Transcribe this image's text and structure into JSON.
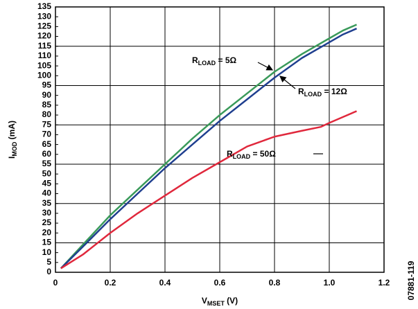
{
  "chart_data": {
    "type": "line",
    "xlabel": [
      "V",
      "MSET",
      " (V)"
    ],
    "ylabel": [
      "I",
      "MOD",
      " (mA)"
    ],
    "side_note": "07881-119",
    "xlim": [
      0,
      1.2
    ],
    "xticks": [
      0,
      0.2,
      0.4,
      0.6,
      0.8,
      {
        "value": 1,
        "label": "1.0"
      },
      1.2
    ],
    "ylim": [
      0,
      135
    ],
    "yticks": [
      0,
      5,
      10,
      15,
      20,
      25,
      30,
      35,
      40,
      45,
      50,
      55,
      60,
      65,
      70,
      75,
      80,
      85,
      90,
      95,
      100,
      105,
      110,
      115,
      120,
      125,
      130,
      135
    ],
    "ygrid": [
      15,
      35,
      55,
      75,
      95,
      115
    ],
    "grid": true,
    "series": [
      {
        "color": "#3a9a5a",
        "x": [
          0.02,
          0.1,
          0.2,
          0.3,
          0.4,
          0.5,
          0.6,
          0.7,
          0.8,
          0.9,
          1.0,
          1.05,
          1.1
        ],
        "values": [
          2,
          14,
          29,
          42,
          55,
          68,
          80,
          91,
          102,
          111,
          119,
          123,
          126
        ]
      },
      {
        "color": "#1f3f8f",
        "x": [
          0.02,
          0.1,
          0.2,
          0.3,
          0.4,
          0.5,
          0.6,
          0.7,
          0.8,
          0.9,
          1.0,
          1.05,
          1.1
        ],
        "values": [
          2,
          13,
          27,
          40,
          53,
          65,
          77,
          88,
          99,
          109,
          117,
          121,
          124
        ]
      },
      {
        "color": "#e0283c",
        "x": [
          0.02,
          0.1,
          0.2,
          0.3,
          0.4,
          0.5,
          0.6,
          0.7,
          0.8,
          0.9,
          0.97,
          1.0,
          1.05,
          1.1
        ],
        "values": [
          2,
          9,
          20,
          30,
          39,
          48,
          56,
          64,
          69,
          72,
          74,
          76,
          79,
          82
        ]
      }
    ],
    "annotations": [
      {
        "text": [
          "R",
          "LOAD",
          " = 5Ω"
        ]
      },
      {
        "text": [
          "R",
          "LOAD",
          " = 12Ω"
        ]
      },
      {
        "text": [
          "R",
          "LOAD",
          " = 50Ω"
        ]
      }
    ]
  }
}
